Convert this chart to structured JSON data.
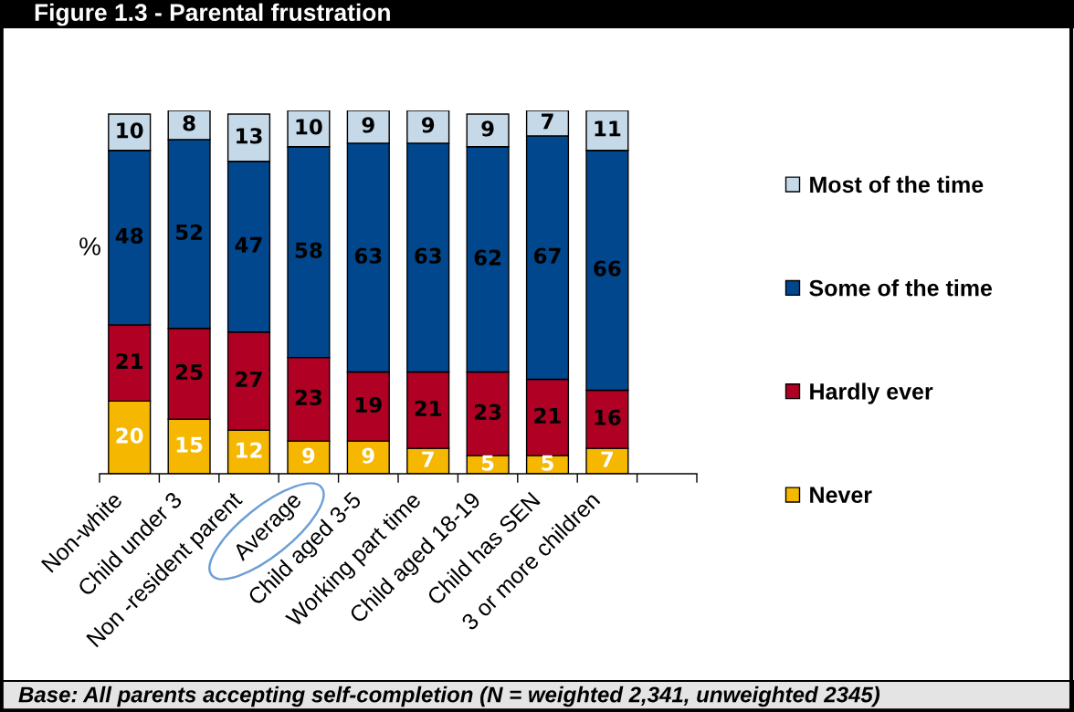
{
  "chart_data": {
    "type": "bar",
    "title": "Figure 1.3 - Parental frustration",
    "ylabel": "%",
    "annotations": [
      "Base: All parents accepting self-completion (N = weighted 2,341, unweighted 2345)"
    ],
    "categories": [
      "Non-white",
      "Child under 3",
      "Non -resident parent",
      "Average",
      "Child aged 3-5",
      "Working part time",
      "Child aged 18-19",
      "Child has SEN",
      "3 or more children",
      null
    ],
    "stacked": true,
    "ylim": [
      0,
      100
    ],
    "tick_labels": "x",
    "data_labels": true,
    "legend": "right",
    "grid": false,
    "series": [
      {
        "name": "Never",
        "color": "#f5b700",
        "values": [
          20,
          15,
          12,
          9,
          9,
          7,
          5,
          5,
          7,
          null
        ]
      },
      {
        "name": "Hardly ever",
        "color": "#b00024",
        "values": [
          21,
          25,
          27,
          23,
          19,
          21,
          23,
          21,
          16,
          null
        ]
      },
      {
        "name": "Some of the time",
        "color": "#00478d",
        "values": [
          48,
          52,
          47,
          58,
          63,
          63,
          62,
          67,
          66,
          null
        ]
      },
      {
        "name": "Most of the time",
        "color": "#c5d9e9",
        "values": [
          10,
          8,
          13,
          10,
          9,
          9,
          9,
          7,
          11,
          null
        ]
      }
    ]
  }
}
